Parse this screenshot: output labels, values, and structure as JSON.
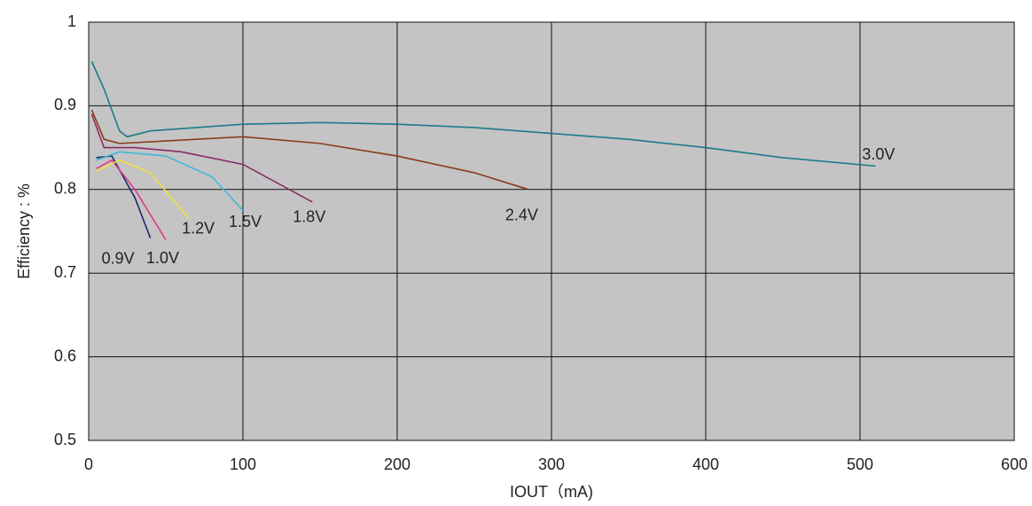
{
  "chart_data": {
    "type": "line",
    "x_label": "IOUT（mA)",
    "y_label": "Efficiency : %",
    "xlim": [
      0,
      600
    ],
    "xticks": [
      0,
      100,
      200,
      300,
      400,
      500,
      600
    ],
    "ylim": [
      0.5,
      1
    ],
    "yticks": [
      0.5,
      0.6,
      0.7,
      0.8,
      0.9,
      1
    ],
    "grid": true,
    "background": "#c4c4c4",
    "series": [
      {
        "name": "0.9V",
        "color": "#1a2a6a",
        "x": [
          5,
          15,
          30,
          40
        ],
        "values": [
          0.838,
          0.84,
          0.79,
          0.742
        ]
      },
      {
        "name": "1.0V",
        "color": "#e0388a",
        "x": [
          5,
          15,
          30,
          50
        ],
        "values": [
          0.825,
          0.835,
          0.8,
          0.74
        ]
      },
      {
        "name": "1.2V",
        "color": "#f0e040",
        "x": [
          5,
          20,
          40,
          65
        ],
        "values": [
          0.822,
          0.835,
          0.82,
          0.765
        ]
      },
      {
        "name": "1.5V",
        "color": "#40b8d8",
        "x": [
          5,
          20,
          50,
          80,
          100
        ],
        "values": [
          0.835,
          0.845,
          0.84,
          0.815,
          0.775
        ]
      },
      {
        "name": "1.8V",
        "color": "#8a2a6a",
        "x": [
          2,
          10,
          30,
          60,
          100,
          145
        ],
        "values": [
          0.89,
          0.85,
          0.85,
          0.845,
          0.83,
          0.785
        ]
      },
      {
        "name": "2.4V",
        "color": "#8a3a1a",
        "x": [
          2,
          10,
          20,
          50,
          100,
          150,
          200,
          250,
          285
        ],
        "values": [
          0.895,
          0.86,
          0.855,
          0.858,
          0.863,
          0.855,
          0.84,
          0.82,
          0.8
        ]
      },
      {
        "name": "3.0V",
        "color": "#1a7a8a",
        "x": [
          2,
          10,
          20,
          25,
          40,
          100,
          150,
          200,
          250,
          300,
          350,
          400,
          450,
          510
        ],
        "values": [
          0.953,
          0.92,
          0.87,
          0.863,
          0.87,
          0.878,
          0.88,
          0.878,
          0.874,
          0.867,
          0.86,
          0.85,
          0.838,
          0.828
        ]
      }
    ]
  }
}
